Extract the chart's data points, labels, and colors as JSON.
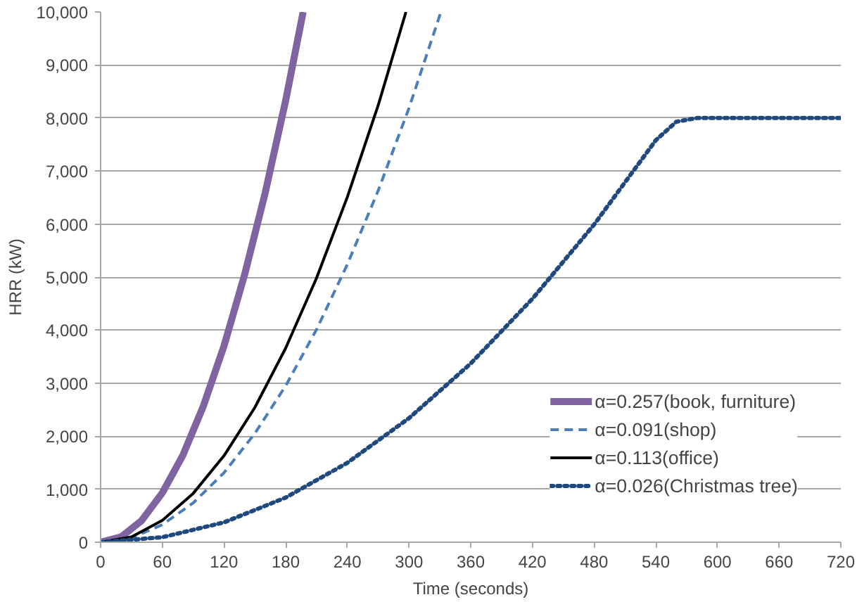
{
  "chart_data": {
    "type": "line",
    "xlabel": "Time (seconds)",
    "ylabel": "HRR (kW)",
    "xlim": [
      0,
      720
    ],
    "xticks": [
      0,
      60,
      120,
      180,
      240,
      300,
      360,
      420,
      480,
      540,
      600,
      660,
      720
    ],
    "ylim": [
      0,
      10000
    ],
    "yticks": [
      {
        "value": 0,
        "label": "0"
      },
      {
        "value": 1000,
        "label": "1,000"
      },
      {
        "value": 2000,
        "label": "2,000"
      },
      {
        "value": 3000,
        "label": "3,000"
      },
      {
        "value": 4000,
        "label": "4,000"
      },
      {
        "value": 5000,
        "label": "5,000"
      },
      {
        "value": 6000,
        "label": "6,000"
      },
      {
        "value": 7000,
        "label": "7,000"
      },
      {
        "value": 8000,
        "label": "8,000"
      },
      {
        "value": 9000,
        "label": "9,000"
      },
      {
        "value": 10000,
        "label": "10,000"
      }
    ],
    "grid": "y",
    "legend": "bottom right",
    "marker": "none",
    "series": [
      {
        "name": "α=0.257(book, furniture)",
        "color": "#8064a2",
        "line_style": "solid",
        "x": [
          0,
          20,
          40,
          60,
          80,
          100,
          120,
          140,
          160,
          180,
          197
        ],
        "values": [
          0,
          100,
          410,
          930,
          1640,
          2570,
          3700,
          5040,
          6580,
          8330,
          10000
        ]
      },
      {
        "name": "α=0.091(shop)",
        "color": "#4a7ebb",
        "line_style": "dashed",
        "x": [
          0,
          30,
          60,
          90,
          120,
          150,
          180,
          210,
          240,
          270,
          300,
          331
        ],
        "values": [
          0,
          80,
          330,
          740,
          1310,
          2050,
          2950,
          4010,
          5240,
          6630,
          8190,
          10000
        ]
      },
      {
        "name": "α=0.113(office)",
        "color": "#000000",
        "line_style": "solid",
        "x": [
          0,
          30,
          60,
          90,
          120,
          150,
          180,
          210,
          240,
          270,
          297
        ],
        "values": [
          0,
          100,
          410,
          920,
          1630,
          2540,
          3660,
          4980,
          6510,
          8240,
          10000
        ]
      },
      {
        "name": "α=0.026(Christmas tree)",
        "color": "#1f497d",
        "line_style": "dotted",
        "x": [
          0,
          60,
          120,
          180,
          240,
          300,
          360,
          420,
          480,
          540,
          560,
          580,
          720
        ],
        "values": [
          0,
          94,
          374,
          842,
          1498,
          2340,
          3370,
          4590,
          5990,
          7580,
          7930,
          8000,
          8000
        ]
      }
    ]
  }
}
